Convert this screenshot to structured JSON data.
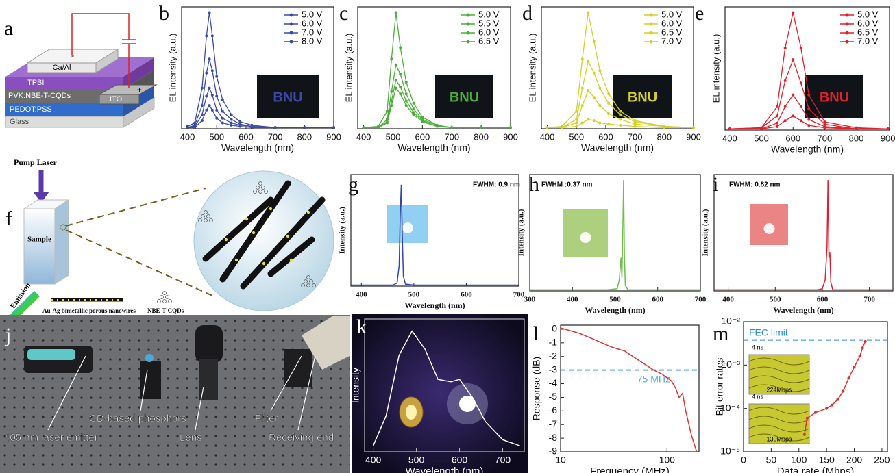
{
  "panels": {
    "a": {
      "label": "a",
      "cathode": "Ca/Al",
      "layers": [
        "TPBI",
        "PVK:NBE-T-CQDs",
        "PEDOT:PSS",
        "Glass"
      ],
      "anode": "ITO",
      "minus": "-",
      "plus": "+"
    },
    "f": {
      "label": "f",
      "pump": "Pump Laser",
      "sample": "Sample",
      "emission": "Emission",
      "wires": "Au-Ag bimetallic porous nanowires",
      "dots": "NBE-T-CQDs"
    },
    "j": {
      "label": "j",
      "callouts": [
        "405 nm laser emitter",
        "CD-based phosphors",
        "Lens",
        "Filter",
        "Receiving end"
      ]
    }
  },
  "chart_data": [
    {
      "type": "line",
      "panel": "b",
      "xlabel": "Wavelength (nm)",
      "ylabel": "EL intensity (a.u.)",
      "inset_text": "BNU",
      "legend": "upper right",
      "markers": true,
      "x": [
        400,
        425,
        450,
        465,
        475,
        485,
        500,
        520,
        550,
        580,
        620,
        700,
        800,
        900
      ],
      "xlim": [
        380,
        900
      ],
      "xticks": [
        400,
        500,
        600,
        700,
        800,
        900
      ],
      "ylim": [
        0,
        1.05
      ],
      "series": [
        {
          "name": "5.0 V",
          "color": "#3a4aa6",
          "values": [
            0.01,
            0.01,
            0.07,
            0.16,
            0.2,
            0.16,
            0.09,
            0.05,
            0.03,
            0.02,
            0.01,
            0.01,
            0.01,
            0.01
          ]
        },
        {
          "name": "6.0 V",
          "color": "#3a4aa6",
          "values": [
            0.01,
            0.02,
            0.12,
            0.28,
            0.35,
            0.29,
            0.16,
            0.09,
            0.05,
            0.03,
            0.02,
            0.01,
            0.01,
            0.01
          ]
        },
        {
          "name": "7.0 V",
          "color": "#3a4aa6",
          "values": [
            0.01,
            0.03,
            0.2,
            0.48,
            0.6,
            0.5,
            0.28,
            0.15,
            0.08,
            0.04,
            0.02,
            0.01,
            0.01,
            0.01
          ]
        },
        {
          "name": "8.0 V",
          "color": "#3a4aa6",
          "values": [
            0.02,
            0.05,
            0.35,
            0.8,
            1.0,
            0.8,
            0.45,
            0.25,
            0.12,
            0.06,
            0.03,
            0.01,
            0.01,
            0.01
          ]
        }
      ]
    },
    {
      "type": "line",
      "panel": "c",
      "xlabel": "Wavelength (nm)",
      "ylabel": "EL intensity (a.u.)",
      "inset_text": "BNU",
      "legend": "upper right",
      "markers": true,
      "x": [
        400,
        450,
        480,
        495,
        510,
        525,
        545,
        570,
        600,
        650,
        700,
        800,
        900
      ],
      "xlim": [
        380,
        900
      ],
      "xticks": [
        400,
        500,
        600,
        700,
        800,
        900
      ],
      "ylim": [
        0,
        1.05
      ],
      "series": [
        {
          "name": "5.0 V",
          "color": "#4cad3a",
          "values": [
            0.01,
            0.01,
            0.05,
            0.2,
            0.35,
            0.3,
            0.2,
            0.12,
            0.06,
            0.02,
            0.01,
            0.01,
            0.01
          ]
        },
        {
          "name": "5.5 V",
          "color": "#4cad3a",
          "values": [
            0.01,
            0.01,
            0.06,
            0.24,
            0.42,
            0.36,
            0.24,
            0.14,
            0.07,
            0.02,
            0.01,
            0.01,
            0.01
          ]
        },
        {
          "name": "6.0 V",
          "color": "#4cad3a",
          "values": [
            0.01,
            0.01,
            0.08,
            0.32,
            0.55,
            0.47,
            0.3,
            0.17,
            0.08,
            0.03,
            0.01,
            0.01,
            0.01
          ]
        },
        {
          "name": "6.5 V",
          "color": "#4cad3a",
          "values": [
            0.01,
            0.02,
            0.15,
            0.6,
            1.0,
            0.7,
            0.4,
            0.22,
            0.1,
            0.03,
            0.01,
            0.01,
            0.01
          ]
        }
      ]
    },
    {
      "type": "line",
      "panel": "d",
      "xlabel": "Wavelength (nm)",
      "ylabel": "EL intensity (a.u.)",
      "inset_text": "BNU",
      "legend": "upper right",
      "markers": true,
      "x": [
        400,
        450,
        500,
        520,
        540,
        560,
        580,
        610,
        650,
        700,
        800,
        900
      ],
      "xlim": [
        380,
        900
      ],
      "xticks": [
        400,
        500,
        600,
        700,
        800,
        900
      ],
      "ylim": [
        0,
        1.05
      ],
      "series": [
        {
          "name": "5.0 V",
          "color": "#d2d12a",
          "values": [
            0.01,
            0.01,
            0.02,
            0.05,
            0.08,
            0.07,
            0.05,
            0.04,
            0.03,
            0.02,
            0.01,
            0.01
          ]
        },
        {
          "name": "6.0 V",
          "color": "#d2d12a",
          "values": [
            0.01,
            0.01,
            0.05,
            0.2,
            0.33,
            0.27,
            0.2,
            0.13,
            0.08,
            0.04,
            0.02,
            0.01
          ]
        },
        {
          "name": "6.5 V",
          "color": "#d2d12a",
          "values": [
            0.01,
            0.01,
            0.08,
            0.35,
            0.58,
            0.48,
            0.35,
            0.22,
            0.12,
            0.06,
            0.02,
            0.01
          ]
        },
        {
          "name": "7.0 V",
          "color": "#d2d12a",
          "values": [
            0.01,
            0.02,
            0.15,
            0.6,
            1.0,
            0.75,
            0.5,
            0.3,
            0.15,
            0.07,
            0.02,
            0.01
          ]
        }
      ]
    },
    {
      "type": "line",
      "panel": "e",
      "xlabel": "Wavelength (nm)",
      "ylabel": "EL intensity (a.u.)",
      "inset_text": "BNU",
      "legend": "upper right",
      "markers": true,
      "x": [
        400,
        500,
        550,
        575,
        600,
        625,
        650,
        700,
        800,
        900
      ],
      "xlim": [
        385,
        905
      ],
      "xticks": [
        400,
        500,
        600,
        700,
        800,
        900
      ],
      "ylim": [
        0,
        1.05
      ],
      "series": [
        {
          "name": "5.0 V",
          "color": "#e0202a",
          "values": [
            0.01,
            0.01,
            0.03,
            0.08,
            0.12,
            0.08,
            0.04,
            0.02,
            0.01,
            0.01
          ]
        },
        {
          "name": "6.0 V",
          "color": "#e0202a",
          "values": [
            0.01,
            0.01,
            0.06,
            0.2,
            0.3,
            0.2,
            0.09,
            0.03,
            0.01,
            0.01
          ]
        },
        {
          "name": "6.5 V",
          "color": "#e0202a",
          "values": [
            0.01,
            0.02,
            0.12,
            0.42,
            0.6,
            0.4,
            0.18,
            0.05,
            0.01,
            0.01
          ]
        },
        {
          "name": "7.0 V",
          "color": "#e0202a",
          "values": [
            0.01,
            0.02,
            0.2,
            0.7,
            1.0,
            0.7,
            0.3,
            0.07,
            0.02,
            0.01
          ]
        }
      ]
    },
    {
      "type": "line",
      "panel": "g",
      "xlabel": "Wavelength (nm)",
      "ylabel": "Intensity (a.u.)",
      "annotation": "FWHM: 0.9 nm",
      "x": [
        380,
        460,
        468,
        472,
        474,
        476,
        478,
        480,
        484,
        500,
        700
      ],
      "xlim": [
        380,
        700
      ],
      "xticks": [
        400,
        500,
        600,
        700
      ],
      "ylim": [
        0,
        1.1
      ],
      "series": [
        {
          "name": "g",
          "color": "#3344aa",
          "values": [
            0.01,
            0.01,
            0.03,
            0.2,
            0.7,
            1.0,
            0.5,
            0.1,
            0.02,
            0.01,
            0.01
          ]
        }
      ]
    },
    {
      "type": "line",
      "panel": "h",
      "xlabel": "Wavelength (nm)",
      "ylabel": "Intensity (a.u.)",
      "annotation": "FWHM :0.37 nm",
      "x": [
        300,
        480,
        505,
        510,
        514,
        516,
        518,
        520,
        522,
        524,
        530,
        700
      ],
      "xlim": [
        300,
        700
      ],
      "xticks": [
        300,
        400,
        500,
        600,
        700
      ],
      "ylim": [
        0,
        1.05
      ],
      "series": [
        {
          "name": "h",
          "color": "#6cbf4a",
          "values": [
            0.01,
            0.01,
            0.02,
            0.1,
            0.3,
            0.12,
            0.5,
            1.0,
            0.3,
            0.05,
            0.01,
            0.01
          ]
        }
      ]
    },
    {
      "type": "line",
      "panel": "i",
      "xlabel": "Wavelength (nm)",
      "ylabel": "Intensity (a.u.)",
      "annotation": "FWHM: 0.82 nm",
      "x": [
        370,
        590,
        600,
        606,
        610,
        612,
        614,
        616,
        618,
        622,
        750
      ],
      "xlim": [
        370,
        750
      ],
      "xticks": [
        400,
        500,
        600,
        700
      ],
      "ylim": [
        0,
        1.05
      ],
      "series": [
        {
          "name": "i",
          "color": "#e02030",
          "values": [
            0.01,
            0.01,
            0.02,
            0.1,
            0.4,
            1.0,
            0.3,
            0.35,
            0.08,
            0.01,
            0.01
          ]
        }
      ]
    },
    {
      "type": "line",
      "panel": "k",
      "xlabel": "Wavelength (nm)",
      "ylabel": "Intensity",
      "x": [
        400,
        430,
        460,
        490,
        520,
        550,
        580,
        600,
        630,
        660,
        700,
        740
      ],
      "xlim": [
        380,
        750
      ],
      "xticks": [
        400,
        500,
        600,
        700
      ],
      "ylim": [
        0,
        1.1
      ],
      "series": [
        {
          "name": "k",
          "color": "#ffffff",
          "values": [
            0.05,
            0.3,
            0.8,
            1.0,
            0.85,
            0.6,
            0.58,
            0.6,
            0.45,
            0.25,
            0.1,
            0.05
          ]
        }
      ]
    },
    {
      "type": "line",
      "panel": "l",
      "xlabel": "Frequency (MHz)",
      "ylabel": "Response (dB)",
      "xlog": true,
      "x": [
        10,
        15,
        20,
        30,
        40,
        50,
        60,
        75,
        90,
        110,
        120,
        130,
        140,
        150,
        170,
        190
      ],
      "xlim": [
        10,
        200
      ],
      "xticks": [
        10,
        100
      ],
      "ylim": [
        -9,
        0.3
      ],
      "yticks": [
        0,
        -1,
        -2,
        -3,
        -4,
        -5,
        -6,
        -7,
        -8,
        -9
      ],
      "hlines": [
        {
          "value": -3,
          "label": "75 MHz",
          "color": "#5aa9d6"
        }
      ],
      "series": [
        {
          "name": "l",
          "color": "#e03030",
          "values": [
            0.1,
            -0.3,
            -0.7,
            -1.3,
            -1.6,
            -2.1,
            -2.5,
            -3.0,
            -3.3,
            -3.8,
            -4.3,
            -5.0,
            -4.7,
            -6,
            -7.8,
            -9
          ]
        }
      ]
    },
    {
      "type": "line",
      "panel": "m",
      "xlabel": "Data rate (Mbps)",
      "ylabel": "Bit error rates",
      "ylog": true,
      "markers": true,
      "inset_texts": [
        "4 ns",
        "224Mbps",
        "4 ns",
        "130Mbps"
      ],
      "x": [
        110,
        115,
        130,
        150,
        160,
        170,
        180,
        190,
        200,
        210,
        215,
        220
      ],
      "xlim": [
        0,
        260
      ],
      "xticks": [
        0,
        50,
        100,
        150,
        200,
        250
      ],
      "ylim": [
        1e-05,
        0.01
      ],
      "yticks": [
        {
          "value": 1e-05,
          "label": "10⁻⁵"
        },
        {
          "value": 0.0001,
          "label": "10⁻⁴"
        },
        {
          "value": 0.001,
          "label": "10⁻³"
        },
        {
          "value": 0.01,
          "label": "10⁻²"
        }
      ],
      "hlines": [
        {
          "value": 0.0038,
          "label": "FEC limit",
          "color": "#2a8fd6"
        }
      ],
      "series": [
        {
          "name": "m",
          "color": "#e03030",
          "values": [
            2.5e-05,
            6e-05,
            8e-05,
            0.0001,
            0.00012,
            0.00016,
            0.00025,
            0.0005,
            0.0009,
            0.0016,
            0.0025,
            0.0035
          ]
        }
      ]
    }
  ]
}
